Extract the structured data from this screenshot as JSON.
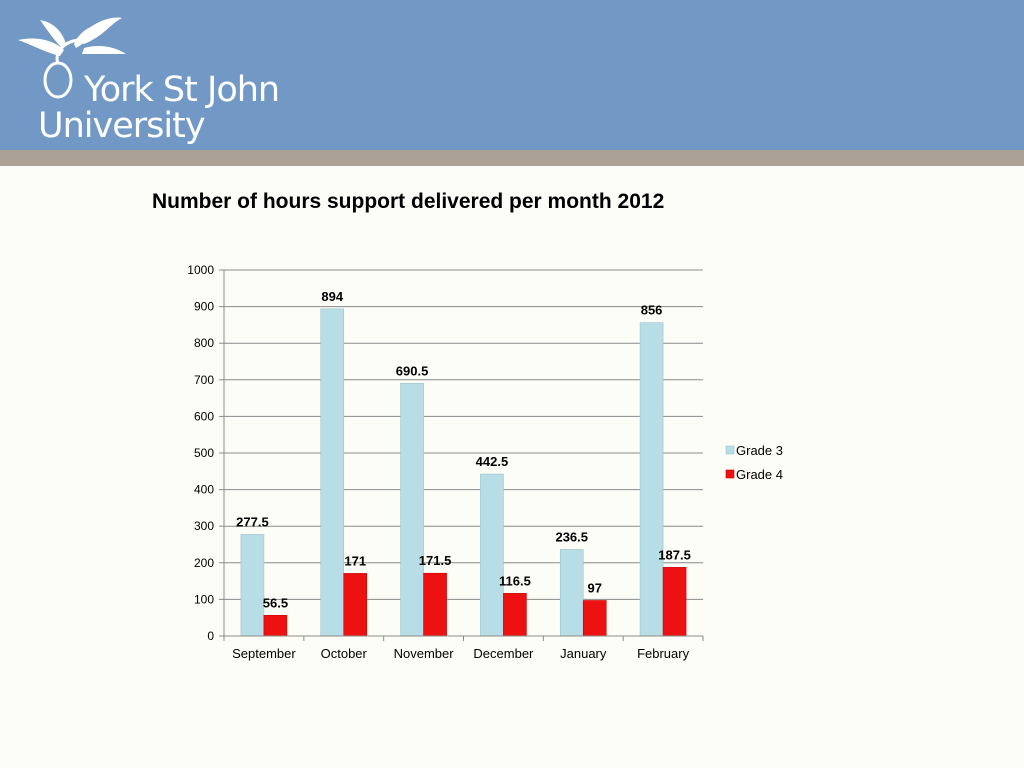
{
  "header": {
    "band_color": "#7299c6",
    "stripe_color": "#aca195",
    "logo": {
      "line1": "York St John",
      "line2": "University",
      "icon": "leaf-swirl-logo-icon"
    }
  },
  "chart_data": {
    "type": "bar",
    "title": "Number of hours support delivered per month 2012",
    "xlabel": "",
    "ylabel": "",
    "categories": [
      "September",
      "October",
      "November",
      "December",
      "January",
      "February"
    ],
    "series": [
      {
        "name": "Grade 3",
        "color": "#b7dee6",
        "values": [
          277.5,
          894,
          690.5,
          442.5,
          236.5,
          856
        ],
        "labels": [
          "277.5",
          "894",
          "690.5",
          "442.5",
          "236.5",
          "856"
        ]
      },
      {
        "name": "Grade 4",
        "color": "#ee1111",
        "values": [
          56.5,
          171,
          171.5,
          116.5,
          97,
          187.5
        ],
        "labels": [
          "56.5",
          "171",
          "171.5",
          "116.5",
          "97",
          "187.5"
        ]
      }
    ],
    "ylim": [
      0,
      1000
    ],
    "yticks": [
      "0",
      "100",
      "200",
      "300",
      "400",
      "500",
      "600",
      "700",
      "800",
      "900",
      "1000"
    ],
    "grid": true,
    "legend_position": "right"
  }
}
